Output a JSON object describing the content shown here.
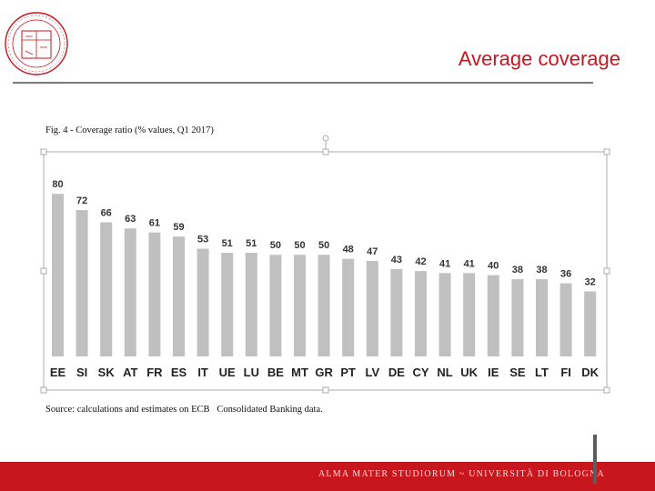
{
  "slide": {
    "title": "Average coverage",
    "figure_caption": "Fig. 4 - Coverage ratio (% values, Q1 2017)",
    "source": "Source: calculations and estimates on ECB   Consolidated Banking data.",
    "footer_text": "ALMA MATER STUDIORUM ~ UNIVERSITÀ DI BOLOGNA",
    "accent_color": "#c8161e",
    "logo_icon": "university-seal-icon"
  },
  "chart_data": {
    "type": "bar",
    "categories": [
      "EE",
      "SI",
      "SK",
      "AT",
      "FR",
      "ES",
      "IT",
      "UE",
      "LU",
      "BE",
      "MT",
      "GR",
      "PT",
      "LV",
      "DE",
      "CY",
      "NL",
      "UK",
      "IE",
      "SE",
      "LT",
      "FI",
      "DK"
    ],
    "values": [
      80,
      72,
      66,
      63,
      61,
      59,
      53,
      51,
      51,
      50,
      50,
      50,
      48,
      47,
      43,
      42,
      41,
      41,
      40,
      38,
      38,
      36,
      32
    ],
    "title": "Fig. 4 - Coverage ratio (% values, Q1 2017)",
    "ylim": [
      0,
      85
    ],
    "bar_color": "#c0c0c0",
    "grid": false,
    "legend": "none"
  }
}
